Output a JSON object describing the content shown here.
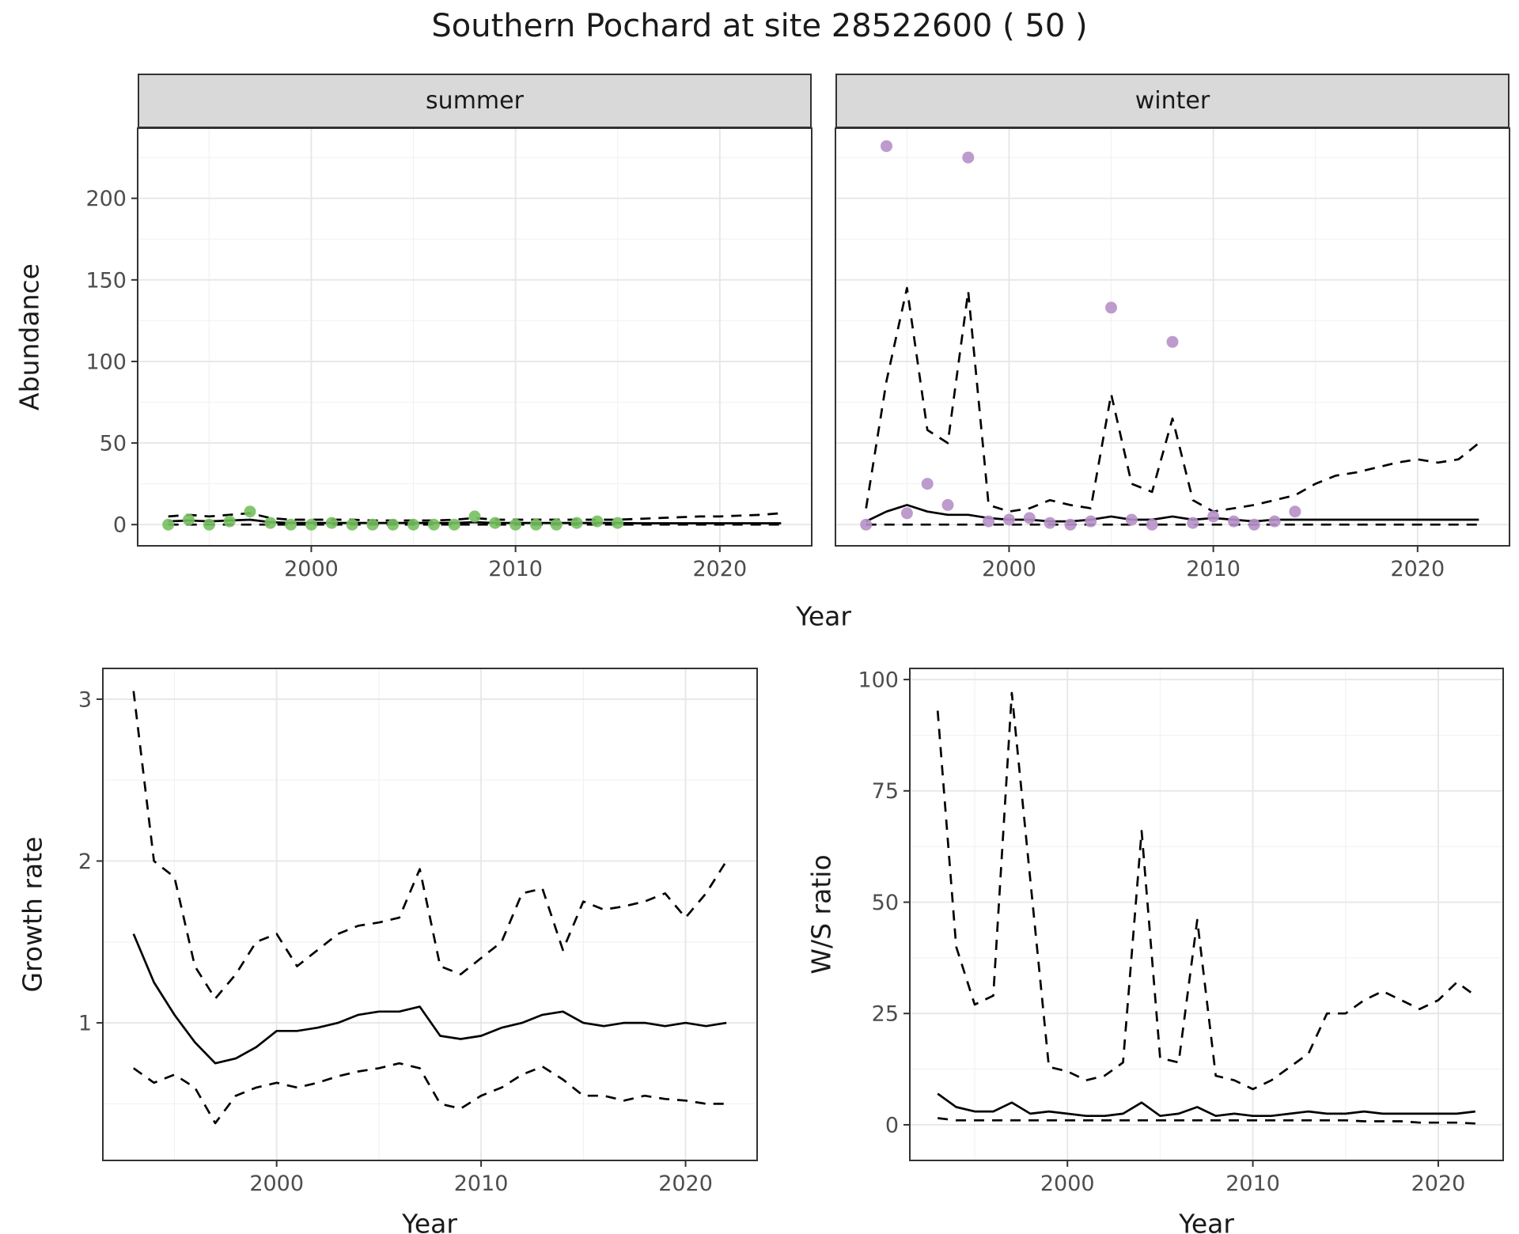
{
  "title": "Southern Pochard at site 28522600 ( 50 )",
  "colors": {
    "summer_point": "#77c05f",
    "winter_point": "#b690c8",
    "line": "#000000",
    "grid_major": "#e7e7e7",
    "grid_minor": "#f1f1f1",
    "border": "#333333",
    "axis_text": "#4d4d4d",
    "strip_bg": "#d9d9d9"
  },
  "chart_data": [
    {
      "id": "abundance",
      "type": "line",
      "xlabel": "Year",
      "ylabel": "Abundance",
      "facets": [
        {
          "label": "summer",
          "xlim": [
            1991.5,
            2024.5
          ],
          "ylim": [
            -13,
            243
          ],
          "x_ticks": [
            2000,
            2010,
            2020
          ],
          "y_ticks": [
            0,
            50,
            100,
            150,
            200
          ],
          "points": {
            "color_key": "summer_point",
            "x": [
              1993,
              1994,
              1995,
              1996,
              1997,
              1998,
              1999,
              2000,
              2001,
              2002,
              2003,
              2004,
              2005,
              2006,
              2007,
              2008,
              2009,
              2010,
              2011,
              2012,
              2013,
              2014,
              2015
            ],
            "y": [
              0,
              3,
              0,
              2,
              8,
              1,
              0,
              0,
              1,
              0,
              0,
              0,
              0,
              0,
              0,
              5,
              1,
              0,
              0,
              0,
              1,
              2,
              1
            ]
          },
          "series": [
            {
              "name": "fit",
              "style": "solid",
              "x": [
                1993,
                1994,
                1995,
                1996,
                1997,
                1998,
                1999,
                2000,
                2001,
                2002,
                2003,
                2004,
                2005,
                2006,
                2007,
                2008,
                2009,
                2010,
                2011,
                2012,
                2013,
                2014,
                2015,
                2016,
                2017,
                2018,
                2019,
                2020,
                2021,
                2022,
                2023
              ],
              "y": [
                2,
                2.5,
                2,
                2.5,
                3,
                1.5,
                1,
                1,
                1,
                1,
                1,
                1,
                1,
                1,
                1,
                1.5,
                1,
                1,
                1,
                1,
                1,
                1,
                1,
                0.8,
                0.8,
                0.8,
                0.8,
                0.8,
                0.8,
                0.8,
                0.8
              ]
            },
            {
              "name": "upper",
              "style": "dashed",
              "x": [
                1993,
                1994,
                1995,
                1996,
                1997,
                1998,
                1999,
                2000,
                2001,
                2002,
                2003,
                2004,
                2005,
                2006,
                2007,
                2008,
                2009,
                2010,
                2011,
                2012,
                2013,
                2014,
                2015,
                2016,
                2017,
                2018,
                2019,
                2020,
                2021,
                2022,
                2023
              ],
              "y": [
                5,
                6,
                5,
                6,
                7,
                4,
                3,
                3,
                3,
                3,
                2.5,
                2.5,
                2.5,
                2.5,
                3,
                4,
                3,
                3,
                3,
                3,
                3,
                3,
                3,
                3.5,
                4,
                4.5,
                5,
                5,
                5.5,
                6,
                7
              ]
            },
            {
              "name": "lower",
              "style": "dashed",
              "x": [
                1993,
                1994,
                1995,
                1996,
                1997,
                1998,
                1999,
                2000,
                2001,
                2002,
                2003,
                2004,
                2005,
                2006,
                2007,
                2008,
                2009,
                2010,
                2011,
                2012,
                2013,
                2014,
                2015,
                2016,
                2017,
                2018,
                2019,
                2020,
                2021,
                2022,
                2023
              ],
              "y": [
                0,
                0,
                0,
                0,
                0,
                0,
                0,
                0,
                0,
                0,
                0,
                0,
                0,
                0,
                0,
                0,
                0,
                0,
                0,
                0,
                0,
                0,
                0,
                0,
                0,
                0,
                0,
                0,
                0,
                0,
                0
              ]
            }
          ]
        },
        {
          "label": "winter",
          "xlim": [
            1991.5,
            2024.5
          ],
          "ylim": [
            -13,
            243
          ],
          "x_ticks": [
            2000,
            2010,
            2020
          ],
          "y_ticks": [
            0,
            50,
            100,
            150,
            200
          ],
          "points": {
            "color_key": "winter_point",
            "x": [
              1993,
              1994,
              1995,
              1996,
              1997,
              1998,
              1999,
              2000,
              2001,
              2002,
              2003,
              2004,
              2005,
              2006,
              2007,
              2008,
              2009,
              2010,
              2011,
              2012,
              2013,
              2014
            ],
            "y": [
              0,
              232,
              7,
              25,
              12,
              225,
              2,
              3,
              4,
              1,
              0,
              2,
              133,
              3,
              0,
              112,
              1,
              5,
              2,
              0,
              2,
              8
            ]
          },
          "series": [
            {
              "name": "fit",
              "style": "solid",
              "x": [
                1993,
                1994,
                1995,
                1996,
                1997,
                1998,
                1999,
                2000,
                2001,
                2002,
                2003,
                2004,
                2005,
                2006,
                2007,
                2008,
                2009,
                2010,
                2011,
                2012,
                2013,
                2014,
                2015,
                2016,
                2017,
                2018,
                2019,
                2020,
                2021,
                2022,
                2023
              ],
              "y": [
                2,
                8,
                12,
                8,
                6,
                6,
                4,
                3,
                3,
                2,
                2,
                3,
                5,
                3,
                3,
                5,
                3,
                4,
                3,
                2,
                3,
                3,
                3,
                3,
                3,
                3,
                3,
                3,
                3,
                3,
                3
              ]
            },
            {
              "name": "upper",
              "style": "dashed",
              "x": [
                1993,
                1994,
                1995,
                1996,
                1997,
                1998,
                1999,
                2000,
                2001,
                2002,
                2003,
                2004,
                2005,
                2006,
                2007,
                2008,
                2009,
                2010,
                2011,
                2012,
                2013,
                2014,
                2015,
                2016,
                2017,
                2018,
                2019,
                2020,
                2021,
                2022,
                2023
              ],
              "y": [
                10,
                88,
                145,
                58,
                50,
                143,
                12,
                8,
                10,
                15,
                12,
                10,
                80,
                25,
                20,
                65,
                15,
                8,
                10,
                12,
                15,
                18,
                25,
                30,
                32,
                35,
                38,
                40,
                38,
                40,
                50
              ]
            },
            {
              "name": "lower",
              "style": "dashed",
              "x": [
                1993,
                1994,
                1995,
                1996,
                1997,
                1998,
                1999,
                2000,
                2001,
                2002,
                2003,
                2004,
                2005,
                2006,
                2007,
                2008,
                2009,
                2010,
                2011,
                2012,
                2013,
                2014,
                2015,
                2016,
                2017,
                2018,
                2019,
                2020,
                2021,
                2022,
                2023
              ],
              "y": [
                0,
                0,
                0,
                0,
                0,
                0,
                0,
                0,
                0,
                0,
                0,
                0,
                0,
                0,
                0,
                0,
                0,
                0,
                0,
                0,
                0,
                0,
                0,
                0,
                0,
                0,
                0,
                0,
                0,
                0,
                0
              ]
            }
          ]
        }
      ]
    },
    {
      "id": "growth_rate",
      "type": "line",
      "xlabel": "Year",
      "ylabel": "Growth rate",
      "xlim": [
        1991.5,
        2023.5
      ],
      "ylim": [
        0.15,
        3.19
      ],
      "x_ticks": [
        2000,
        2010,
        2020
      ],
      "y_ticks": [
        1,
        2,
        3
      ],
      "series": [
        {
          "name": "median",
          "style": "solid",
          "x": [
            1993,
            1994,
            1995,
            1996,
            1997,
            1998,
            1999,
            2000,
            2001,
            2002,
            2003,
            2004,
            2005,
            2006,
            2007,
            2008,
            2009,
            2010,
            2011,
            2012,
            2013,
            2014,
            2015,
            2016,
            2017,
            2018,
            2019,
            2020,
            2021,
            2022
          ],
          "y": [
            1.55,
            1.25,
            1.05,
            0.88,
            0.75,
            0.78,
            0.85,
            0.95,
            0.95,
            0.97,
            1.0,
            1.05,
            1.07,
            1.07,
            1.1,
            0.92,
            0.9,
            0.92,
            0.97,
            1.0,
            1.05,
            1.07,
            1.0,
            0.98,
            1.0,
            1.0,
            0.98,
            1.0,
            0.98,
            1.0
          ]
        },
        {
          "name": "upper",
          "style": "dashed",
          "x": [
            1993,
            1994,
            1995,
            1996,
            1997,
            1998,
            1999,
            2000,
            2001,
            2002,
            2003,
            2004,
            2005,
            2006,
            2007,
            2008,
            2009,
            2010,
            2011,
            2012,
            2013,
            2014,
            2015,
            2016,
            2017,
            2018,
            2019,
            2020,
            2021,
            2022
          ],
          "y": [
            3.05,
            2.0,
            1.9,
            1.35,
            1.15,
            1.3,
            1.5,
            1.55,
            1.35,
            1.45,
            1.55,
            1.6,
            1.62,
            1.65,
            1.95,
            1.35,
            1.3,
            1.4,
            1.5,
            1.8,
            1.83,
            1.45,
            1.75,
            1.7,
            1.72,
            1.75,
            1.8,
            1.65,
            1.8,
            2.0
          ]
        },
        {
          "name": "lower",
          "style": "dashed",
          "x": [
            1993,
            1994,
            1995,
            1996,
            1997,
            1998,
            1999,
            2000,
            2001,
            2002,
            2003,
            2004,
            2005,
            2006,
            2007,
            2008,
            2009,
            2010,
            2011,
            2012,
            2013,
            2014,
            2015,
            2016,
            2017,
            2018,
            2019,
            2020,
            2021,
            2022
          ],
          "y": [
            0.72,
            0.63,
            0.68,
            0.6,
            0.38,
            0.55,
            0.6,
            0.63,
            0.6,
            0.63,
            0.67,
            0.7,
            0.72,
            0.75,
            0.72,
            0.5,
            0.47,
            0.55,
            0.6,
            0.68,
            0.73,
            0.65,
            0.55,
            0.55,
            0.52,
            0.55,
            0.53,
            0.52,
            0.5,
            0.5
          ]
        }
      ]
    },
    {
      "id": "ws_ratio",
      "type": "line",
      "xlabel": "Year",
      "ylabel": "W/S ratio",
      "xlim": [
        1991.5,
        2023.5
      ],
      "ylim": [
        -8,
        102.5
      ],
      "x_ticks": [
        2000,
        2010,
        2020
      ],
      "y_ticks": [
        0,
        25,
        50,
        75,
        100
      ],
      "series": [
        {
          "name": "median",
          "style": "solid",
          "x": [
            1993,
            1994,
            1995,
            1996,
            1997,
            1998,
            1999,
            2000,
            2001,
            2002,
            2003,
            2004,
            2005,
            2006,
            2007,
            2008,
            2009,
            2010,
            2011,
            2012,
            2013,
            2014,
            2015,
            2016,
            2017,
            2018,
            2019,
            2020,
            2021,
            2022
          ],
          "y": [
            7,
            4,
            3,
            3,
            5,
            2.5,
            3,
            2.5,
            2,
            2,
            2.5,
            5,
            2,
            2.5,
            4,
            2,
            2.5,
            2,
            2,
            2.5,
            3,
            2.5,
            2.5,
            3,
            2.5,
            2.5,
            2.5,
            2.5,
            2.5,
            3
          ]
        },
        {
          "name": "upper",
          "style": "dashed",
          "x": [
            1993,
            1994,
            1995,
            1996,
            1997,
            1998,
            1999,
            2000,
            2001,
            2002,
            2003,
            2004,
            2005,
            2006,
            2007,
            2008,
            2009,
            2010,
            2011,
            2012,
            2013,
            2014,
            2015,
            2016,
            2017,
            2018,
            2019,
            2020,
            2021,
            2022
          ],
          "y": [
            93,
            40,
            27,
            29,
            97,
            55,
            13,
            12,
            10,
            11,
            14,
            66,
            15,
            14,
            46,
            11,
            10,
            8,
            10,
            13,
            16,
            25,
            25,
            28,
            30,
            28,
            26,
            28,
            32,
            29
          ]
        },
        {
          "name": "lower",
          "style": "dashed",
          "x": [
            1993,
            1994,
            1995,
            1996,
            1997,
            1998,
            1999,
            2000,
            2001,
            2002,
            2003,
            2004,
            2005,
            2006,
            2007,
            2008,
            2009,
            2010,
            2011,
            2012,
            2013,
            2014,
            2015,
            2016,
            2017,
            2018,
            2019,
            2020,
            2021,
            2022
          ],
          "y": [
            1.5,
            1,
            1,
            1,
            1,
            1,
            1,
            1,
            1,
            1,
            1,
            1,
            1,
            1,
            1,
            1,
            1,
            1,
            1,
            1,
            1,
            1,
            1,
            0.8,
            0.8,
            0.8,
            0.5,
            0.5,
            0.5,
            0.3
          ]
        }
      ]
    }
  ]
}
